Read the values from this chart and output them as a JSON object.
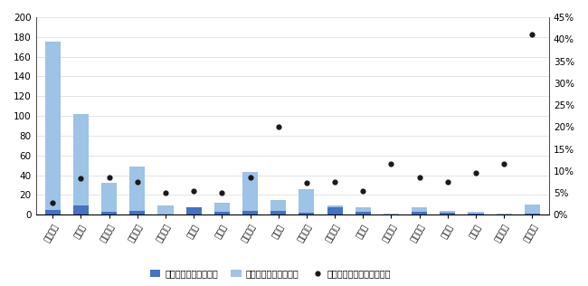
{
  "companies": [
    "贵州茅台",
    "五粮液",
    "泸州老窖",
    "山西汾酒",
    "舍得酒业",
    "水井坊",
    "酒鬼酒",
    "洋河股份",
    "今世缘",
    "古井贡酒",
    "迎驾贡酒",
    "口子窖",
    "金种子酒",
    "老白干酒",
    "金徽酒",
    "伊力特",
    "天佑德酒",
    "顺鑫农业"
  ],
  "liangshui": [
    5,
    9,
    3,
    4,
    0.5,
    8,
    3,
    4,
    4,
    2,
    8,
    3,
    0.5,
    3,
    2,
    1.5,
    0.5,
    1
  ],
  "jiashui": [
    175,
    102,
    32,
    49,
    9,
    7,
    12,
    43,
    15,
    26,
    9,
    8,
    1.5,
    8,
    4,
    3,
    1.5,
    10
  ],
  "ratio": [
    0.028,
    0.082,
    0.085,
    0.074,
    0.05,
    0.055,
    0.05,
    0.086,
    0.2,
    0.073,
    0.075,
    0.055,
    0.115,
    0.085,
    0.075,
    0.095,
    0.115,
    0.41
  ],
  "bar_color_liang": "#4472c4",
  "bar_color_jia": "#9dc3e6",
  "dot_color": "#1a1a1a",
  "ylim_left": [
    0,
    200
  ],
  "ylim_right": [
    0,
    0.45
  ],
  "yticks_left": [
    0,
    20,
    40,
    60,
    80,
    100,
    120,
    140,
    160,
    180,
    200
  ],
  "yticks_right": [
    0.0,
    0.05,
    0.1,
    0.15,
    0.2,
    0.25,
    0.3,
    0.35,
    0.4,
    0.45
  ],
  "legend_liang": "从量消费税负（亿元）",
  "legend_jia": "从价消费税负（亿元）",
  "legend_ratio": "从量消费税负占比（右轴）",
  "fig_width": 6.5,
  "fig_height": 3.16,
  "dpi": 100,
  "bar_width": 0.55,
  "grid_color": "#d9d9d9",
  "background_color": "#ffffff"
}
